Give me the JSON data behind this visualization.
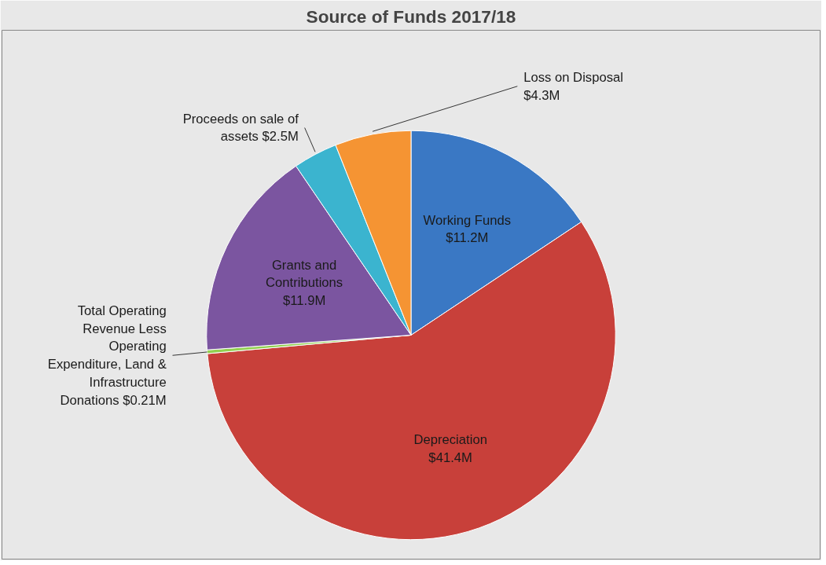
{
  "chart_data": {
    "type": "pie",
    "title": "Source of Funds 2017/18",
    "categories": [
      "Working Funds",
      "Depreciation",
      "Total Operating Revenue Less Operating Expenditure, Land & Infrastructure Donations",
      "Grants and Contributions",
      "Proceeds on sale of assets",
      "Loss on Disposal"
    ],
    "values": [
      11.2,
      41.4,
      0.21,
      11.9,
      2.5,
      4.3
    ],
    "colors": [
      "#3a78c4",
      "#c8403a",
      "#92d050",
      "#7b55a0",
      "#3bb4cf",
      "#f59433"
    ],
    "value_labels": [
      "$11.2M",
      "$41.4M",
      "$0.21M",
      "$11.9M",
      "$2.5M",
      "$4.3M"
    ]
  }
}
